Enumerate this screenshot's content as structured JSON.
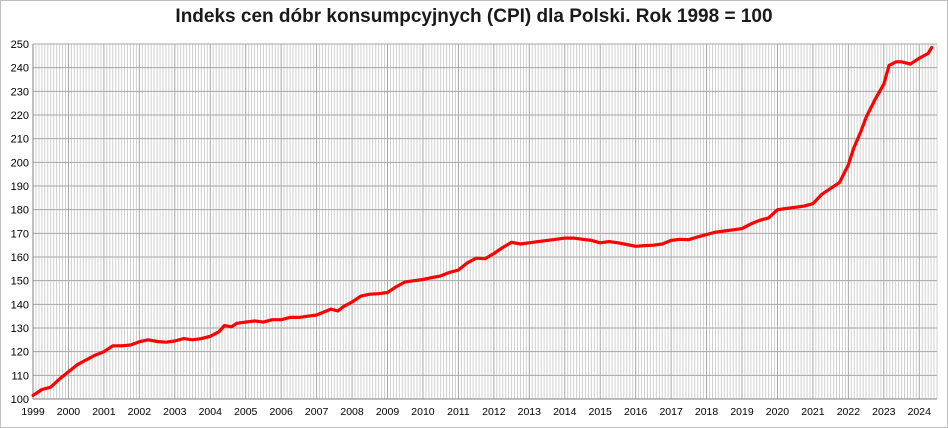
{
  "chart_data": {
    "type": "line",
    "title": "Indeks cen dóbr konsumpcyjnych (CPI) dla Polski. Rok 1998 = 100",
    "xlabel": "",
    "ylabel": "",
    "xlim": [
      1999,
      2024.5
    ],
    "ylim": [
      100,
      250
    ],
    "y_ticks": [
      100,
      110,
      120,
      130,
      140,
      150,
      160,
      170,
      180,
      190,
      200,
      210,
      220,
      230,
      240,
      250
    ],
    "x_ticks": [
      "1999",
      "2000",
      "2001",
      "2002",
      "2003",
      "2004",
      "2005",
      "2006",
      "2007",
      "2008",
      "2009",
      "2010",
      "2011",
      "2012",
      "2013",
      "2014",
      "2015",
      "2016",
      "2017",
      "2018",
      "2019",
      "2020",
      "2021",
      "2022",
      "2023",
      "2024"
    ],
    "grid": true,
    "legend": "none",
    "series": [
      {
        "color": "#ff0000",
        "points": [
          [
            1999.0,
            101.5
          ],
          [
            1999.25,
            104.0
          ],
          [
            1999.5,
            105.0
          ],
          [
            1999.75,
            108.5
          ],
          [
            2000.0,
            111.5
          ],
          [
            2000.25,
            114.5
          ],
          [
            2000.5,
            116.5
          ],
          [
            2000.75,
            118.5
          ],
          [
            2001.0,
            120.0
          ],
          [
            2001.25,
            122.5
          ],
          [
            2001.5,
            122.5
          ],
          [
            2001.75,
            122.8
          ],
          [
            2002.0,
            124.2
          ],
          [
            2002.25,
            125.0
          ],
          [
            2002.5,
            124.3
          ],
          [
            2002.75,
            124.0
          ],
          [
            2003.0,
            124.5
          ],
          [
            2003.25,
            125.5
          ],
          [
            2003.5,
            125.0
          ],
          [
            2003.75,
            125.5
          ],
          [
            2004.0,
            126.5
          ],
          [
            2004.25,
            128.5
          ],
          [
            2004.4,
            131.0
          ],
          [
            2004.6,
            130.5
          ],
          [
            2004.75,
            132.0
          ],
          [
            2005.0,
            132.5
          ],
          [
            2005.25,
            133.0
          ],
          [
            2005.5,
            132.5
          ],
          [
            2005.75,
            133.5
          ],
          [
            2006.0,
            133.5
          ],
          [
            2006.25,
            134.5
          ],
          [
            2006.5,
            134.5
          ],
          [
            2006.75,
            135.0
          ],
          [
            2007.0,
            135.5
          ],
          [
            2007.25,
            137.0
          ],
          [
            2007.4,
            138.0
          ],
          [
            2007.6,
            137.2
          ],
          [
            2007.75,
            139.0
          ],
          [
            2008.0,
            141.0
          ],
          [
            2008.25,
            143.5
          ],
          [
            2008.5,
            144.3
          ],
          [
            2008.75,
            144.5
          ],
          [
            2009.0,
            145.0
          ],
          [
            2009.25,
            147.5
          ],
          [
            2009.5,
            149.5
          ],
          [
            2009.75,
            150.0
          ],
          [
            2010.0,
            150.5
          ],
          [
            2010.25,
            151.3
          ],
          [
            2010.5,
            152.0
          ],
          [
            2010.75,
            153.5
          ],
          [
            2011.0,
            154.5
          ],
          [
            2011.25,
            157.5
          ],
          [
            2011.5,
            159.5
          ],
          [
            2011.75,
            159.3
          ],
          [
            2012.0,
            161.5
          ],
          [
            2012.25,
            164.0
          ],
          [
            2012.5,
            166.2
          ],
          [
            2012.75,
            165.5
          ],
          [
            2013.0,
            166.0
          ],
          [
            2013.25,
            166.5
          ],
          [
            2013.5,
            167.0
          ],
          [
            2013.75,
            167.5
          ],
          [
            2014.0,
            168.0
          ],
          [
            2014.25,
            168.0
          ],
          [
            2014.5,
            167.5
          ],
          [
            2014.75,
            167.0
          ],
          [
            2015.0,
            166.0
          ],
          [
            2015.25,
            166.5
          ],
          [
            2015.5,
            166.0
          ],
          [
            2015.75,
            165.3
          ],
          [
            2016.0,
            164.5
          ],
          [
            2016.25,
            164.8
          ],
          [
            2016.5,
            165.0
          ],
          [
            2016.75,
            165.5
          ],
          [
            2017.0,
            167.0
          ],
          [
            2017.25,
            167.5
          ],
          [
            2017.5,
            167.3
          ],
          [
            2017.75,
            168.5
          ],
          [
            2018.0,
            169.5
          ],
          [
            2018.25,
            170.5
          ],
          [
            2018.5,
            171.0
          ],
          [
            2018.75,
            171.5
          ],
          [
            2019.0,
            172.0
          ],
          [
            2019.25,
            174.0
          ],
          [
            2019.5,
            175.5
          ],
          [
            2019.75,
            176.5
          ],
          [
            2020.0,
            180.0
          ],
          [
            2020.25,
            180.5
          ],
          [
            2020.5,
            181.0
          ],
          [
            2020.75,
            181.5
          ],
          [
            2021.0,
            182.5
          ],
          [
            2021.25,
            186.5
          ],
          [
            2021.5,
            189.0
          ],
          [
            2021.75,
            191.5
          ],
          [
            2022.0,
            199.0
          ],
          [
            2022.15,
            206.0
          ],
          [
            2022.35,
            213.0
          ],
          [
            2022.5,
            219.0
          ],
          [
            2022.75,
            226.5
          ],
          [
            2023.0,
            233.0
          ],
          [
            2023.15,
            241.0
          ],
          [
            2023.35,
            242.5
          ],
          [
            2023.5,
            242.5
          ],
          [
            2023.75,
            241.5
          ],
          [
            2024.0,
            244.0
          ],
          [
            2024.25,
            246.0
          ],
          [
            2024.35,
            248.5
          ]
        ]
      }
    ]
  }
}
